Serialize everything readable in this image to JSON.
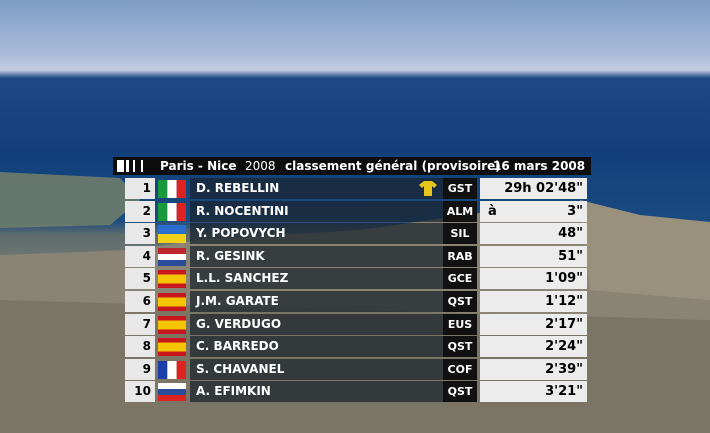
{
  "header": {
    "race": "Paris - Nice",
    "year": "2008",
    "title": "classement général (provisoire)",
    "date": "16 mars 2008"
  },
  "rows": [
    {
      "rank": "1",
      "name": "D. REBELLIN",
      "team": "GST",
      "time": "29h 02'48\""
    },
    {
      "rank": "2",
      "name": "R. NOCENTINI",
      "team": "ALM",
      "prefix": "à",
      "time": "3\""
    },
    {
      "rank": "3",
      "name": "Y. POPOVYCH",
      "team": "SIL",
      "time": "48\""
    },
    {
      "rank": "4",
      "name": "R. GESINK",
      "team": "RAB",
      "time": "51\""
    },
    {
      "rank": "5",
      "name": "L.L. SANCHEZ",
      "team": "GCE",
      "time": "1'09\""
    },
    {
      "rank": "6",
      "name": "J.M. GARATE",
      "team": "QST",
      "time": "1'12\""
    },
    {
      "rank": "7",
      "name": "G. VERDUGO",
      "team": "EUS",
      "time": "2'17\""
    },
    {
      "rank": "8",
      "name": "C. BARREDO",
      "team": "QST",
      "time": "2'24\""
    },
    {
      "rank": "9",
      "name": "S. CHAVANEL",
      "team": "COF",
      "time": "2'39\""
    },
    {
      "rank": "10",
      "name": "A. EFIMKIN",
      "team": "QST",
      "time": "3'21\""
    }
  ]
}
